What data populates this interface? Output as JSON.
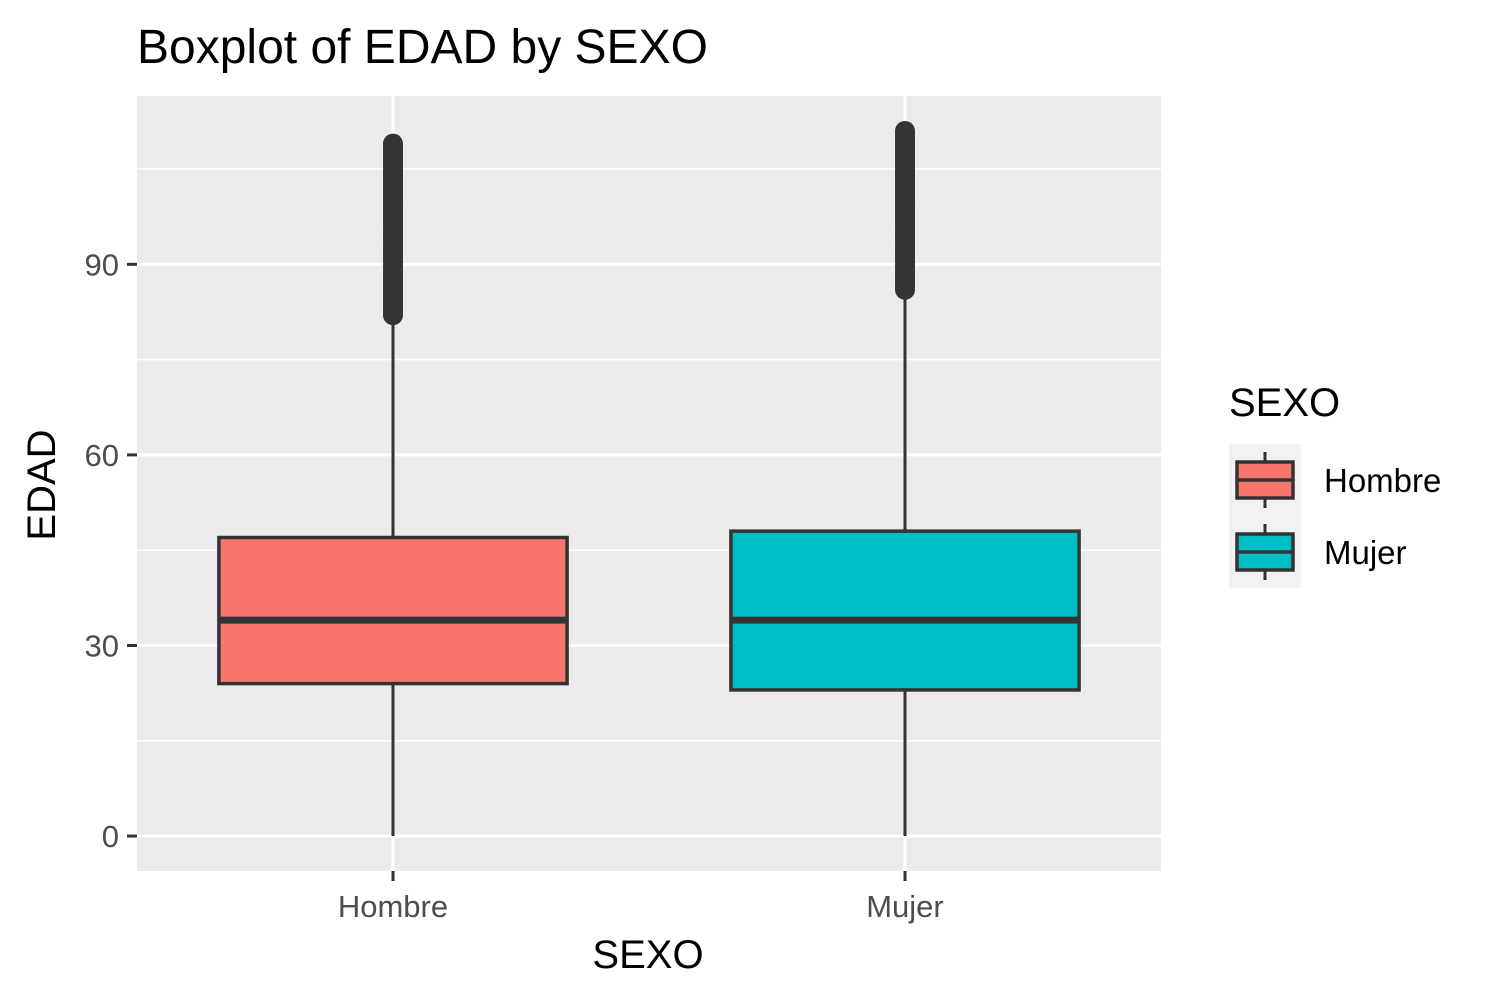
{
  "chart_data": {
    "type": "boxplot",
    "title": "Boxplot of EDAD by SEXO",
    "xlabel": "SEXO",
    "ylabel": "EDAD",
    "categories": [
      "Hombre",
      "Mujer"
    ],
    "y_ticks": [
      0,
      30,
      60,
      90
    ],
    "ylim": [
      -5.5,
      116.5
    ],
    "grid": true,
    "legend": {
      "title": "SEXO",
      "position": "right",
      "entries": [
        "Hombre",
        "Mujer"
      ]
    },
    "series": [
      {
        "category": "Hombre",
        "color": "#F8766D",
        "whisker_low": 0,
        "q1": 24,
        "median": 34,
        "q3": 47,
        "whisker_high": 81,
        "outliers_range": [
          82,
          109
        ]
      },
      {
        "category": "Mujer",
        "color": "#00BFC4",
        "whisker_low": 0,
        "q1": 23,
        "median": 34,
        "q3": 48,
        "whisker_high": 85,
        "outliers_range": [
          86,
          111
        ]
      }
    ]
  }
}
